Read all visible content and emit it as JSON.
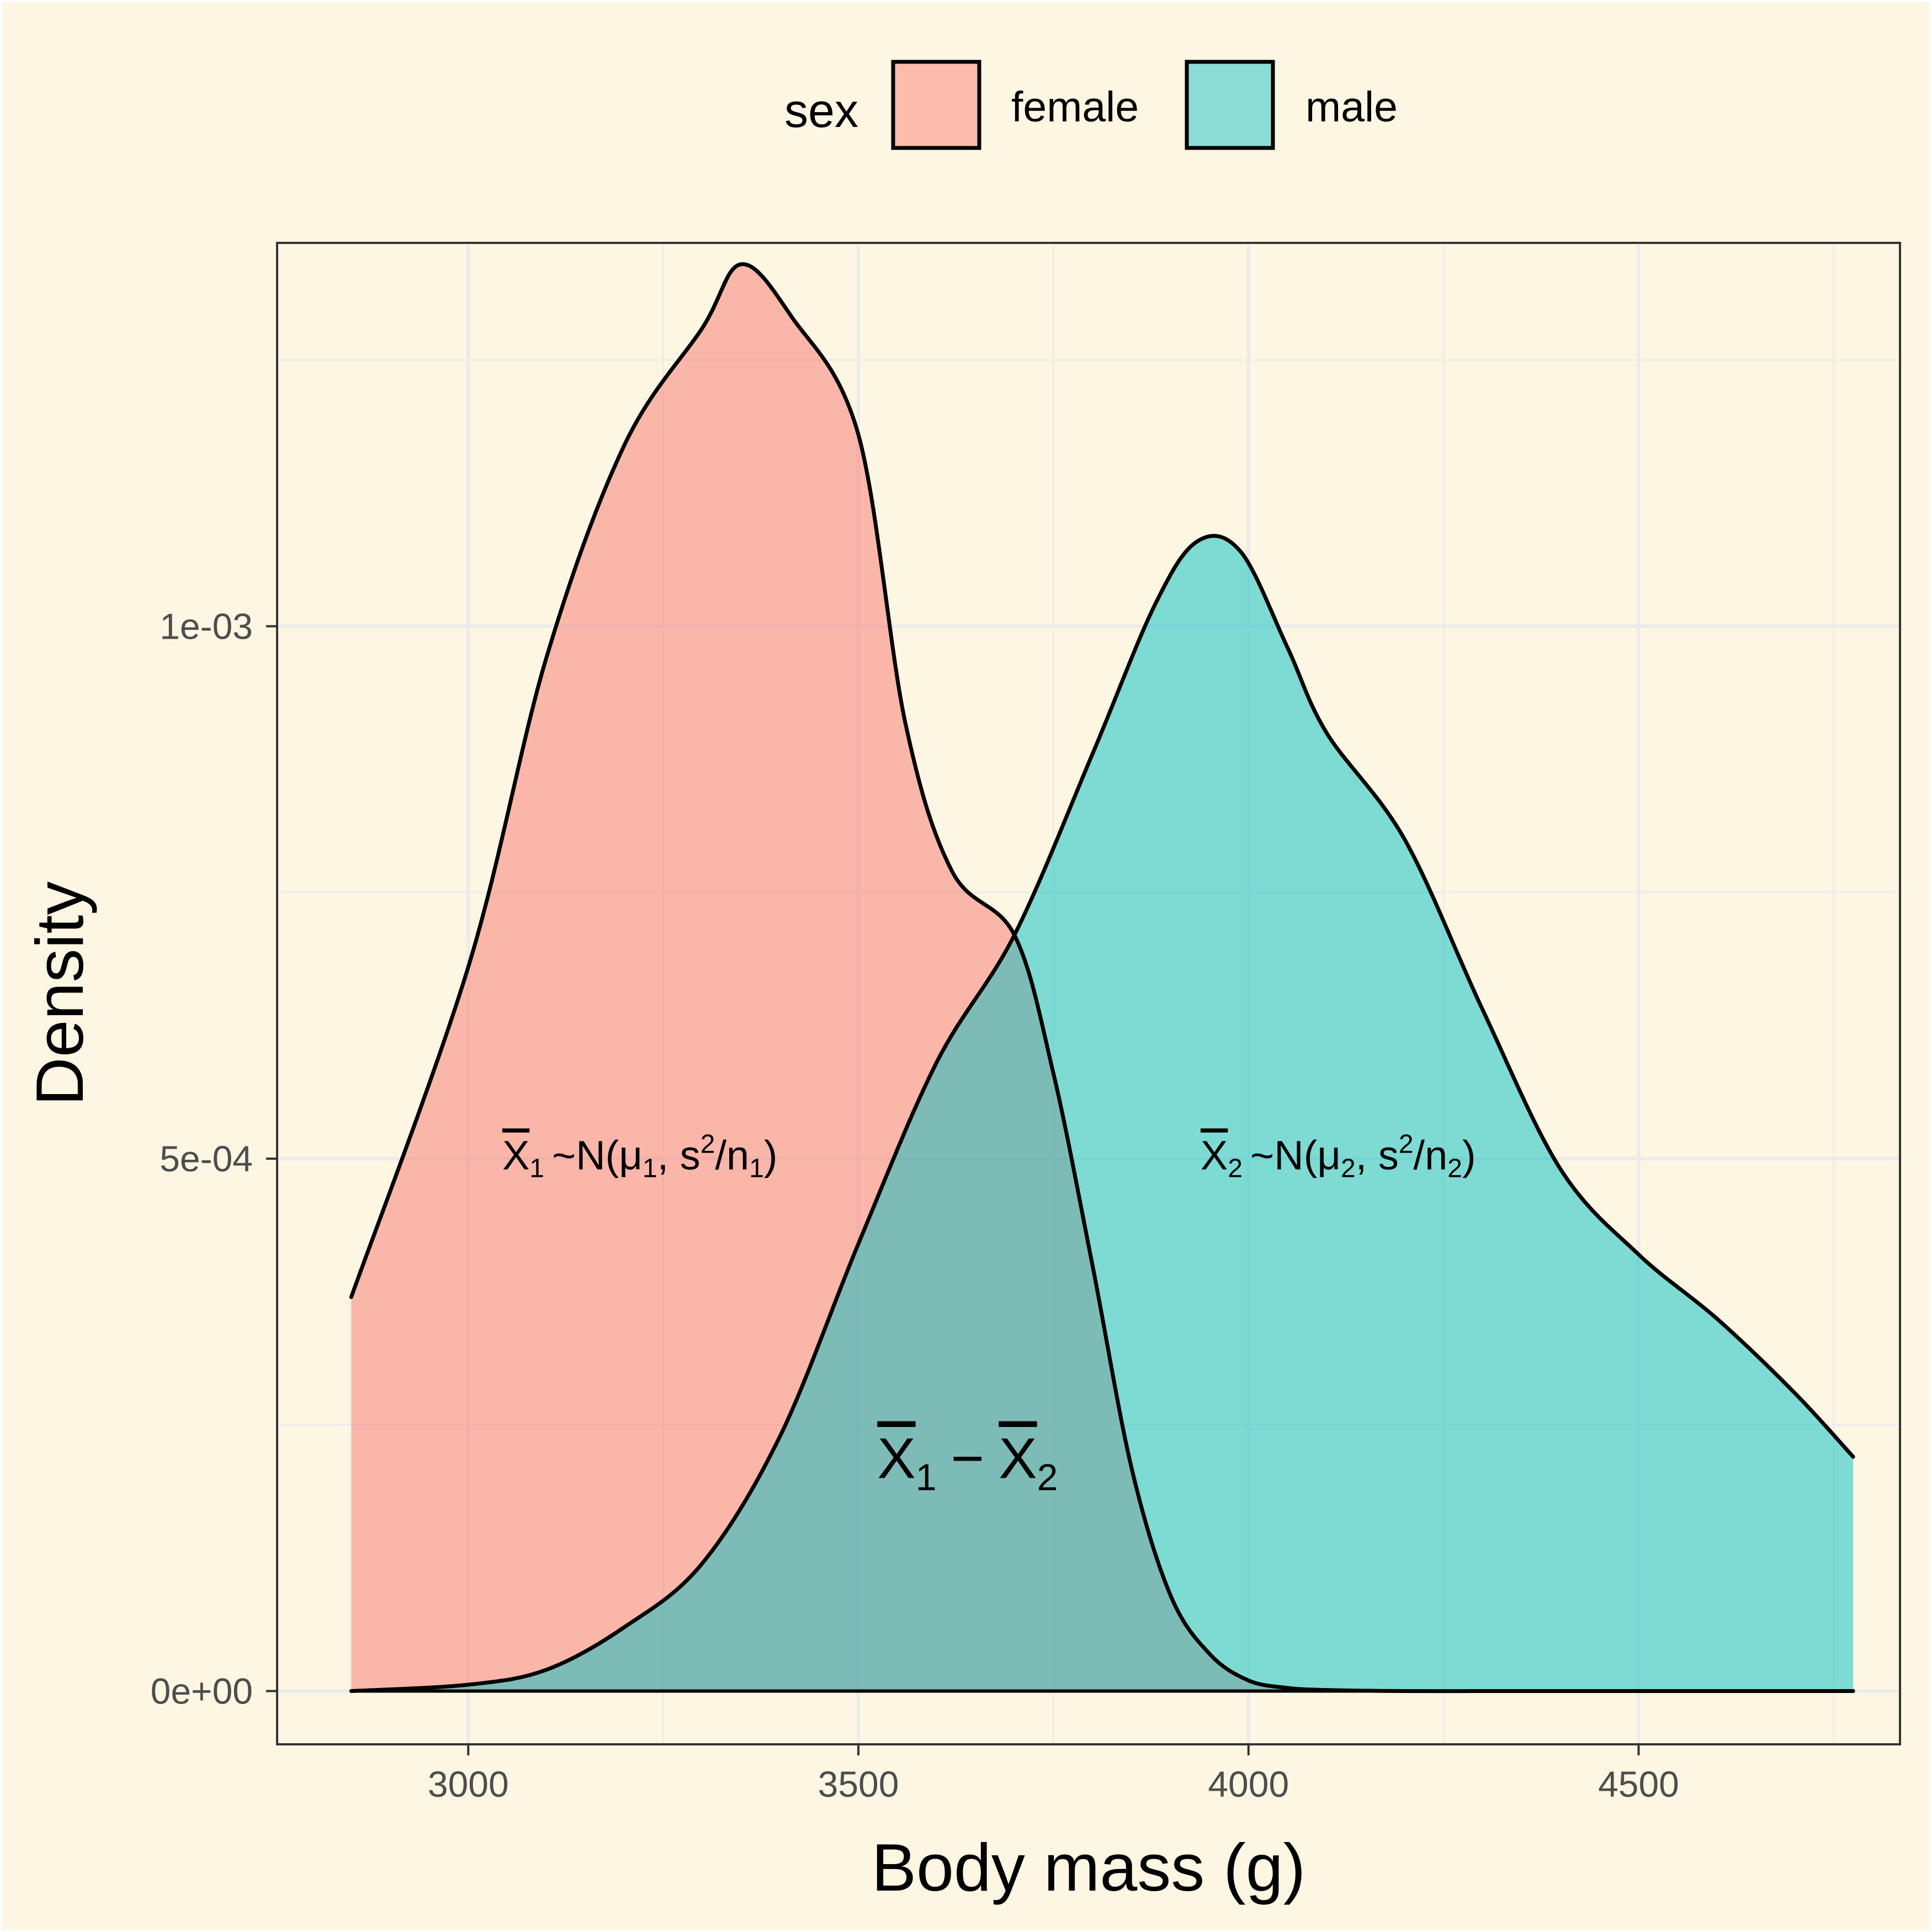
{
  "chart_data": {
    "type": "area",
    "xlabel": "Body mass (g)",
    "ylabel": "Density",
    "xlim": [
      2755,
      4835
    ],
    "ylim": [
      -5e-05,
      0.00136
    ],
    "x_ticks": [
      3000,
      3500,
      4000,
      4500
    ],
    "x_tick_labels": [
      "3000",
      "3500",
      "4000",
      "4500"
    ],
    "y_ticks": [
      0,
      0.0005,
      0.001
    ],
    "y_tick_labels": [
      "0e+00",
      "5e-04",
      "1e-03"
    ],
    "grid": true,
    "legend": {
      "title": "sex",
      "position": "top",
      "entries": [
        "female",
        "male"
      ]
    },
    "series": [
      {
        "name": "female",
        "color": "#F8766D",
        "x": [
          2850,
          3000,
          3100,
          3200,
          3300,
          3350,
          3415,
          3500,
          3560,
          3620,
          3700,
          3750,
          3800,
          3850,
          3900,
          3950,
          4000,
          4050,
          4100,
          4200,
          4300,
          4400,
          4500,
          4600,
          4700,
          4775
        ],
        "y": [
          0.00037,
          0.00068,
          0.00097,
          0.00117,
          0.00128,
          0.00134,
          0.00129,
          0.00118,
          0.00091,
          0.00077,
          0.00071,
          0.00058,
          0.0004,
          0.00021,
          9e-05,
          3.5e-05,
          1e-05,
          3e-06,
          1e-06,
          0,
          0,
          0,
          0,
          0,
          0,
          0
        ]
      },
      {
        "name": "male",
        "color": "#00BFC4",
        "x": [
          2850,
          3000,
          3100,
          3200,
          3300,
          3400,
          3500,
          3600,
          3700,
          3800,
          3880,
          3935,
          3990,
          4050,
          4100,
          4200,
          4300,
          4400,
          4500,
          4600,
          4700,
          4775
        ],
        "y": [
          0,
          6e-06,
          2e-05,
          6e-05,
          0.00012,
          0.00024,
          0.00042,
          0.00059,
          0.00071,
          0.00088,
          0.00102,
          0.00108,
          0.00107,
          0.00098,
          0.0009,
          0.0008,
          0.00064,
          0.00049,
          0.00041,
          0.00035,
          0.00028,
          0.00022
        ]
      }
    ],
    "annotations": [
      {
        "id": "a1",
        "bar_var": "X",
        "var_sub": "1",
        "dist": "~N(",
        "mu": "μ",
        "mu_sub": "1",
        "sep": ", s",
        "sup": "2",
        "slash": "/n",
        "n_sub": "1",
        "close": ")",
        "x": 3220,
        "y": 0.00049
      },
      {
        "id": "a2",
        "bar_var": "X",
        "var_sub": "2",
        "dist": "~N(",
        "mu": "μ",
        "mu_sub": "2",
        "sep": ", s",
        "sup": "2",
        "slash": "/n",
        "n_sub": "2",
        "close": ")",
        "x": 4115,
        "y": 0.00049
      },
      {
        "id": "a3",
        "bar_var1": "X",
        "sub1": "1",
        "minus": "−",
        "bar_var2": "X",
        "sub2": "2",
        "x": 3640,
        "y": 0.0002
      }
    ]
  }
}
